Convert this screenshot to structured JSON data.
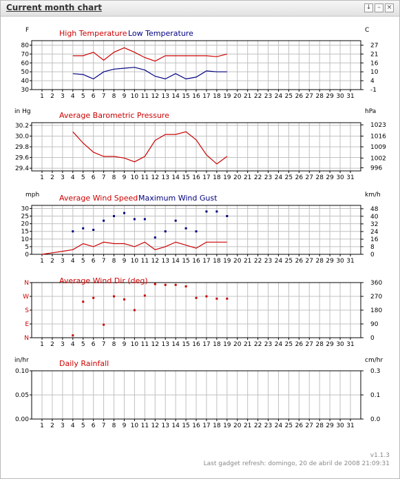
{
  "window": {
    "title": "Current month chart",
    "buttons": {
      "pin": "↓",
      "minimize": "–",
      "close": "×"
    }
  },
  "footer": {
    "version": "v1.1.3",
    "refresh": "Last gadget refresh: domingo, 20 de abril de 2008 21:09:31"
  },
  "colors": {
    "red": "#cc0000",
    "blue": "#000080",
    "grid": "#c0c0c0",
    "frame": "#000000"
  },
  "chart_data": [
    {
      "id": "temperature",
      "type": "line",
      "left_unit": "F",
      "right_unit": "C",
      "x": [
        1,
        2,
        3,
        4,
        5,
        6,
        7,
        8,
        9,
        10,
        11,
        12,
        13,
        14,
        15,
        16,
        17,
        18,
        19,
        20,
        21,
        22,
        23,
        24,
        25,
        26,
        27,
        28,
        29,
        30,
        31
      ],
      "ylim": [
        30,
        85
      ],
      "left_ticks": [
        "80",
        "70",
        "60",
        "50",
        "40",
        "30"
      ],
      "right_ticks": [
        "27",
        "21",
        "16",
        "10",
        "4",
        "-1"
      ],
      "right_tick_values": [
        80,
        70,
        60,
        50,
        40,
        30
      ],
      "series": [
        {
          "name": "High Temperature",
          "color": "red",
          "style": "line",
          "x": [
            4,
            5,
            6,
            7,
            8,
            9,
            10,
            11,
            12,
            13,
            14,
            15,
            16,
            17,
            18,
            19
          ],
          "y": [
            68,
            68,
            72,
            63,
            72,
            77,
            72,
            66,
            62,
            68,
            68,
            68,
            68,
            68,
            67,
            70
          ]
        },
        {
          "name": "Low Temperature",
          "color": "blue",
          "style": "line",
          "x": [
            4,
            5,
            6,
            7,
            8,
            9,
            10,
            11,
            12,
            13,
            14,
            15,
            16,
            17,
            18,
            19
          ],
          "y": [
            48,
            47,
            42,
            50,
            53,
            54,
            55,
            52,
            45,
            42,
            48,
            42,
            44,
            51,
            50,
            50
          ]
        }
      ]
    },
    {
      "id": "pressure",
      "type": "line",
      "left_unit": "in Hg",
      "right_unit": "hPa",
      "x": [
        1,
        2,
        3,
        4,
        5,
        6,
        7,
        8,
        9,
        10,
        11,
        12,
        13,
        14,
        15,
        16,
        17,
        18,
        19,
        20,
        21,
        22,
        23,
        24,
        25,
        26,
        27,
        28,
        29,
        30,
        31
      ],
      "ylim": [
        29.35,
        30.25
      ],
      "left_ticks": [
        "30.2",
        "30.0",
        "29.8",
        "29.6",
        "29.4"
      ],
      "right_ticks": [
        "1023",
        "1016",
        "1009",
        "1002",
        "996"
      ],
      "right_tick_values": [
        30.21,
        30.0,
        29.8,
        29.59,
        29.41
      ],
      "series": [
        {
          "name": "Average Barometric Pressure",
          "color": "red",
          "style": "line",
          "x": [
            4,
            5,
            6,
            7,
            8,
            9,
            10,
            11,
            12,
            13,
            14,
            15,
            16,
            17,
            18,
            19
          ],
          "y": [
            30.08,
            29.87,
            29.7,
            29.62,
            29.62,
            29.59,
            29.52,
            29.62,
            29.92,
            30.03,
            30.03,
            30.08,
            29.93,
            29.65,
            29.48,
            29.62
          ]
        }
      ]
    },
    {
      "id": "wind",
      "type": "line",
      "left_unit": "mph",
      "right_unit": "km/h",
      "x": [
        1,
        2,
        3,
        4,
        5,
        6,
        7,
        8,
        9,
        10,
        11,
        12,
        13,
        14,
        15,
        16,
        17,
        18,
        19,
        20,
        21,
        22,
        23,
        24,
        25,
        26,
        27,
        28,
        29,
        30,
        31
      ],
      "ylim": [
        0,
        32
      ],
      "left_ticks": [
        "30",
        "25",
        "20",
        "15",
        "10",
        "5",
        "0"
      ],
      "right_ticks": [
        "48",
        "40",
        "32",
        "24",
        "16",
        "8",
        "0"
      ],
      "right_tick_values": [
        29.8,
        24.9,
        19.9,
        14.9,
        9.9,
        5,
        0
      ],
      "series": [
        {
          "name": "Average Wind Speed",
          "color": "red",
          "style": "line",
          "x": [
            1,
            2,
            3,
            4,
            5,
            6,
            7,
            8,
            9,
            10,
            11,
            12,
            13,
            14,
            15,
            16,
            17,
            18,
            19
          ],
          "y": [
            0,
            1,
            2,
            3,
            7,
            5,
            8,
            7,
            7,
            5,
            8,
            3,
            5,
            8,
            6,
            4,
            8,
            8,
            8
          ]
        },
        {
          "name": "Maximum Wind Gust",
          "color": "blue",
          "style": "points",
          "x": [
            4,
            5,
            6,
            7,
            8,
            9,
            10,
            11,
            12,
            13,
            14,
            15,
            16,
            17,
            18,
            19
          ],
          "y": [
            15,
            17,
            16,
            22,
            25,
            27,
            23,
            23,
            11,
            15,
            22,
            17,
            15,
            28,
            28,
            25
          ]
        }
      ]
    },
    {
      "id": "winddir",
      "type": "scatter",
      "left_unit": "",
      "right_unit": "",
      "x": [
        1,
        2,
        3,
        4,
        5,
        6,
        7,
        8,
        9,
        10,
        11,
        12,
        13,
        14,
        15,
        16,
        17,
        18,
        19,
        20,
        21,
        22,
        23,
        24,
        25,
        26,
        27,
        28,
        29,
        30,
        31
      ],
      "ylim": [
        0,
        360
      ],
      "left_ticks": [
        "N",
        "W",
        "S",
        "E",
        "N"
      ],
      "right_ticks": [
        "360",
        "270",
        "180",
        "90",
        "0"
      ],
      "right_tick_values": [
        360,
        270,
        180,
        90,
        0
      ],
      "series": [
        {
          "name": "Average Wind Dir (deg)",
          "color": "red",
          "style": "points",
          "x": [
            4,
            5,
            6,
            7,
            8,
            9,
            10,
            11,
            12,
            13,
            14,
            15,
            16,
            17,
            18,
            19
          ],
          "y": [
            15,
            235,
            260,
            85,
            270,
            250,
            180,
            275,
            350,
            345,
            345,
            335,
            260,
            270,
            255,
            255
          ]
        }
      ]
    },
    {
      "id": "rain",
      "type": "line",
      "left_unit": "in/hr",
      "right_unit": "cm/hr",
      "x": [
        1,
        2,
        3,
        4,
        5,
        6,
        7,
        8,
        9,
        10,
        11,
        12,
        13,
        14,
        15,
        16,
        17,
        18,
        19,
        20,
        21,
        22,
        23,
        24,
        25,
        26,
        27,
        28,
        29,
        30,
        31
      ],
      "ylim": [
        0,
        0.1
      ],
      "left_ticks": [
        "0.10",
        "0.05",
        "0.00"
      ],
      "right_ticks": [
        "0.3",
        "0.1",
        "0.0"
      ],
      "right_tick_values": [
        0.1,
        0.05,
        0
      ],
      "series": [
        {
          "name": "Daily Rainfall",
          "color": "red",
          "style": "line",
          "x": [],
          "y": []
        }
      ]
    }
  ]
}
